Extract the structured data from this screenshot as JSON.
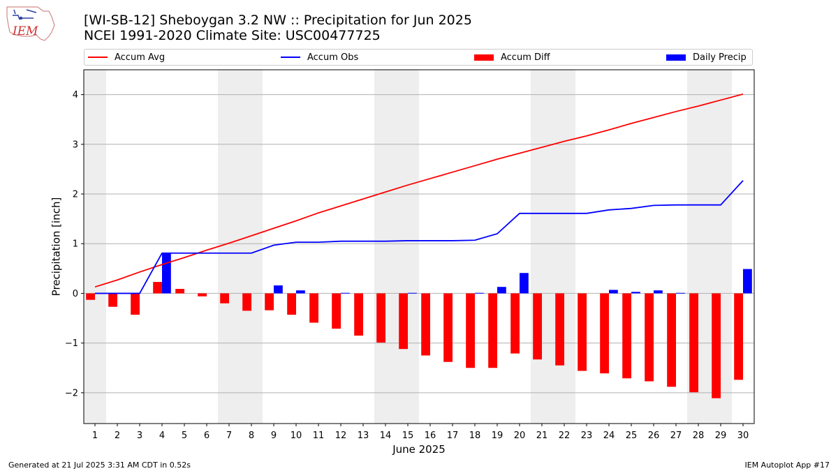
{
  "header": {
    "title_line1": "[WI-SB-12] Sheboygan 3.2 NW :: Precipitation for Jun 2025",
    "title_line2": "NCEI 1991-2020 Climate Site: USC00477725",
    "logo_text": "IEM"
  },
  "footer": {
    "generated": "Generated at 21 Jul 2025 3:31 AM CDT in 0.52s",
    "app": "IEM Autoplot App #17"
  },
  "legend": {
    "accum_avg": "Accum Avg",
    "accum_obs": "Accum Obs",
    "accum_diff": "Accum Diff",
    "daily_precip": "Daily Precip"
  },
  "colors": {
    "accum_avg": "#ff0000",
    "accum_obs": "#0000ff",
    "accum_diff": "#ff0000",
    "daily_precip": "#0000ff",
    "weekend_shade": "#eeeeee",
    "grid": "#b0b0b0"
  },
  "chart_data": {
    "type": "bar",
    "xlabel": "June 2025",
    "ylabel": "Precipitation [inch]",
    "xlim": [
      0.5,
      30.5
    ],
    "ylim": [
      -2.62,
      4.5
    ],
    "yticks": [
      -2,
      -1,
      0,
      1,
      2,
      3,
      4
    ],
    "ytick_labels": [
      "−2",
      "−1",
      "0",
      "1",
      "2",
      "3",
      "4"
    ],
    "grid": "y",
    "legend_position": "top",
    "x": [
      1,
      2,
      3,
      4,
      5,
      6,
      7,
      8,
      9,
      10,
      11,
      12,
      13,
      14,
      15,
      16,
      17,
      18,
      19,
      20,
      21,
      22,
      23,
      24,
      25,
      26,
      27,
      28,
      29,
      30
    ],
    "x_tick_labels": [
      "1",
      "2",
      "3",
      "4",
      "5",
      "6",
      "7",
      "8",
      "9",
      "10",
      "11",
      "12",
      "13",
      "14",
      "15",
      "16",
      "17",
      "18",
      "19",
      "20",
      "21",
      "22",
      "23",
      "24",
      "25",
      "26",
      "27",
      "28",
      "29",
      "30"
    ],
    "weekend_days": [
      1,
      7,
      8,
      14,
      15,
      21,
      22,
      28,
      29
    ],
    "series": [
      {
        "name": "Accum Avg",
        "type": "line",
        "values": [
          0.13,
          0.27,
          0.43,
          0.58,
          0.72,
          0.87,
          1.01,
          1.16,
          1.31,
          1.46,
          1.62,
          1.76,
          1.9,
          2.04,
          2.18,
          2.31,
          2.44,
          2.57,
          2.7,
          2.82,
          2.94,
          3.06,
          3.17,
          3.29,
          3.42,
          3.54,
          3.66,
          3.77,
          3.89,
          4.01
        ]
      },
      {
        "name": "Accum Obs",
        "type": "line",
        "values": [
          0.0,
          0.0,
          0.0,
          0.81,
          0.81,
          0.81,
          0.81,
          0.81,
          0.97,
          1.03,
          1.03,
          1.05,
          1.05,
          1.05,
          1.06,
          1.06,
          1.06,
          1.07,
          1.2,
          1.61,
          1.61,
          1.61,
          1.61,
          1.68,
          1.71,
          1.77,
          1.78,
          1.78,
          1.78,
          2.27
        ]
      },
      {
        "name": "Accum Diff",
        "type": "bar",
        "values": [
          -0.13,
          -0.27,
          -0.43,
          0.23,
          0.09,
          -0.06,
          -0.2,
          -0.35,
          -0.34,
          -0.43,
          -0.59,
          -0.71,
          -0.85,
          -0.99,
          -1.12,
          -1.25,
          -1.38,
          -1.5,
          -1.5,
          -1.21,
          -1.33,
          -1.45,
          -1.56,
          -1.61,
          -1.71,
          -1.77,
          -1.88,
          -1.99,
          -2.11,
          -1.74
        ]
      },
      {
        "name": "Daily Precip",
        "type": "bar",
        "values": [
          0.0,
          0.0,
          0.0,
          0.81,
          0.0,
          0.0,
          0.0,
          0.0,
          0.16,
          0.06,
          0.0,
          0.01,
          0.0,
          0.0,
          0.01,
          0.0,
          0.0,
          0.01,
          0.13,
          0.41,
          0.0,
          0.0,
          0.0,
          0.07,
          0.03,
          0.06,
          0.01,
          0.0,
          0.0,
          0.49
        ]
      }
    ]
  }
}
